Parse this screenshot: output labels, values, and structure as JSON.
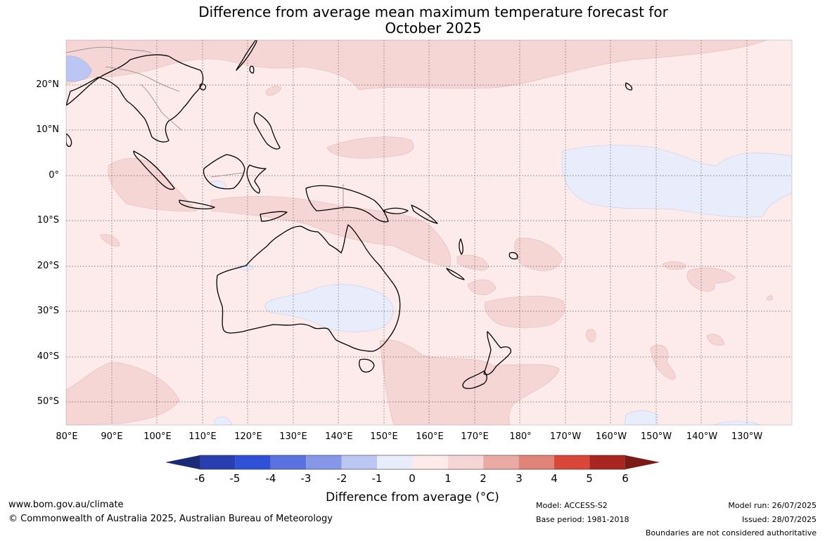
{
  "title_line1": "Difference from average mean maximum temperature forecast for",
  "title_line2": "October 2025",
  "latitude_labels": [
    "20°N",
    "10°N",
    "0°",
    "10°S",
    "20°S",
    "30°S",
    "40°S",
    "50°S"
  ],
  "longitude_labels": [
    "80°E",
    "90°E",
    "100°E",
    "110°E",
    "120°E",
    "130°E",
    "140°E",
    "150°E",
    "160°E",
    "170°E",
    "180°",
    "170°W",
    "160°W",
    "150°W",
    "140°W",
    "130°W"
  ],
  "colorbar": {
    "title": "Difference from average (°C)",
    "ticks": [
      "-6",
      "-5",
      "-4",
      "-3",
      "-2",
      "-1",
      "0",
      "1",
      "2",
      "3",
      "4",
      "5",
      "6"
    ],
    "colors": [
      "#1b2a78",
      "#2a3faf",
      "#3050d8",
      "#5a72e0",
      "#8598e8",
      "#bcc6f2",
      "#e8ecfb",
      "#fcebea",
      "#f5d6d4",
      "#eaaaa4",
      "#e08378",
      "#d9473a",
      "#a8261f",
      "#7a1b15"
    ]
  },
  "map_colors": {
    "neutral_warm": "#fcebea",
    "warm_1_2": "#f5d6d4",
    "cool_0_1": "#e8ecfb",
    "cool_1_2": "#bcc6f2",
    "coastline": "#000000",
    "border": "#888888"
  },
  "footer": {
    "website": "www.bom.gov.au/climate",
    "copyright": "© Commonwealth of Australia 2025, Australian Bureau of Meteorology",
    "model": "Model: ACCESS-S2",
    "base_period": "Base period: 1981-2018",
    "model_run": "Model run: 26/07/2025",
    "issued": "Issued: 28/07/2025",
    "disclaimer": "Boundaries are not considered authoritative"
  }
}
